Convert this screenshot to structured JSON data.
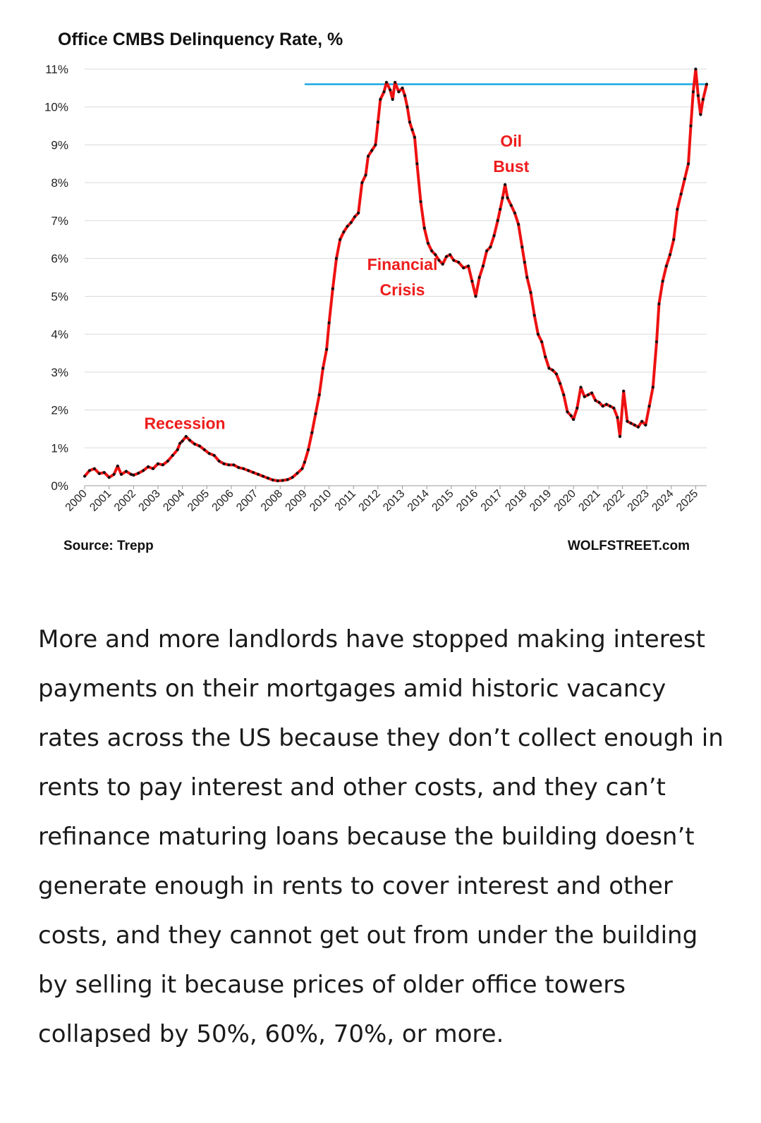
{
  "chart_data": {
    "type": "line",
    "title": "Office CMBS Delinquency Rate, %",
    "xlabel": "",
    "ylabel": "",
    "y_ticks": [
      "0%",
      "1%",
      "2%",
      "3%",
      "4%",
      "5%",
      "6%",
      "7%",
      "8%",
      "9%",
      "10%",
      "11%"
    ],
    "x_ticks": [
      "2000",
      "2001",
      "2002",
      "2003",
      "2004",
      "2005",
      "2006",
      "2007",
      "2008",
      "2009",
      "2010",
      "2011",
      "2012",
      "2013",
      "2014",
      "2015",
      "2016",
      "2017",
      "2018",
      "2019",
      "2020",
      "2021",
      "2022",
      "2023",
      "2024",
      "2025"
    ],
    "ylim": [
      0,
      11
    ],
    "xlim": [
      2000.0,
      2025.45
    ],
    "grid": "horizontal",
    "series": [
      {
        "color": "#ee1111",
        "marker_color": "#111111",
        "points": [
          [
            2000.0,
            0.25
          ],
          [
            2000.2,
            0.4
          ],
          [
            2000.4,
            0.45
          ],
          [
            2000.6,
            0.32
          ],
          [
            2000.8,
            0.35
          ],
          [
            2001.0,
            0.22
          ],
          [
            2001.2,
            0.3
          ],
          [
            2001.35,
            0.52
          ],
          [
            2001.5,
            0.3
          ],
          [
            2001.7,
            0.38
          ],
          [
            2001.9,
            0.3
          ],
          [
            2002.0,
            0.28
          ],
          [
            2002.2,
            0.33
          ],
          [
            2002.4,
            0.4
          ],
          [
            2002.6,
            0.5
          ],
          [
            2002.8,
            0.45
          ],
          [
            2003.0,
            0.58
          ],
          [
            2003.2,
            0.55
          ],
          [
            2003.4,
            0.65
          ],
          [
            2003.6,
            0.8
          ],
          [
            2003.8,
            0.95
          ],
          [
            2003.9,
            1.12
          ],
          [
            2004.0,
            1.18
          ],
          [
            2004.15,
            1.3
          ],
          [
            2004.3,
            1.2
          ],
          [
            2004.5,
            1.1
          ],
          [
            2004.7,
            1.05
          ],
          [
            2004.9,
            0.95
          ],
          [
            2005.1,
            0.85
          ],
          [
            2005.3,
            0.8
          ],
          [
            2005.5,
            0.65
          ],
          [
            2005.7,
            0.58
          ],
          [
            2005.9,
            0.55
          ],
          [
            2006.1,
            0.55
          ],
          [
            2006.3,
            0.48
          ],
          [
            2006.5,
            0.45
          ],
          [
            2006.7,
            0.4
          ],
          [
            2006.9,
            0.35
          ],
          [
            2007.1,
            0.3
          ],
          [
            2007.3,
            0.25
          ],
          [
            2007.5,
            0.2
          ],
          [
            2007.7,
            0.15
          ],
          [
            2007.9,
            0.13
          ],
          [
            2008.1,
            0.14
          ],
          [
            2008.3,
            0.16
          ],
          [
            2008.5,
            0.22
          ],
          [
            2008.7,
            0.33
          ],
          [
            2008.9,
            0.45
          ],
          [
            2009.0,
            0.62
          ],
          [
            2009.15,
            0.95
          ],
          [
            2009.3,
            1.4
          ],
          [
            2009.45,
            1.9
          ],
          [
            2009.6,
            2.4
          ],
          [
            2009.75,
            3.1
          ],
          [
            2009.9,
            3.6
          ],
          [
            2010.0,
            4.3
          ],
          [
            2010.15,
            5.2
          ],
          [
            2010.3,
            6.0
          ],
          [
            2010.45,
            6.5
          ],
          [
            2010.6,
            6.7
          ],
          [
            2010.75,
            6.85
          ],
          [
            2010.9,
            6.95
          ],
          [
            2011.05,
            7.1
          ],
          [
            2011.2,
            7.2
          ],
          [
            2011.35,
            8.0
          ],
          [
            2011.5,
            8.2
          ],
          [
            2011.6,
            8.7
          ],
          [
            2011.75,
            8.85
          ],
          [
            2011.9,
            9.0
          ],
          [
            2012.0,
            9.6
          ],
          [
            2012.1,
            10.2
          ],
          [
            2012.25,
            10.4
          ],
          [
            2012.35,
            10.65
          ],
          [
            2012.5,
            10.45
          ],
          [
            2012.6,
            10.2
          ],
          [
            2012.7,
            10.65
          ],
          [
            2012.85,
            10.4
          ],
          [
            2013.0,
            10.5
          ],
          [
            2013.1,
            10.3
          ],
          [
            2013.2,
            10.0
          ],
          [
            2013.3,
            9.6
          ],
          [
            2013.4,
            9.4
          ],
          [
            2013.5,
            9.2
          ],
          [
            2013.6,
            8.5
          ],
          [
            2013.75,
            7.5
          ],
          [
            2013.9,
            6.8
          ],
          [
            2014.05,
            6.4
          ],
          [
            2014.2,
            6.2
          ],
          [
            2014.35,
            6.1
          ],
          [
            2014.5,
            5.95
          ],
          [
            2014.65,
            5.85
          ],
          [
            2014.8,
            6.05
          ],
          [
            2014.95,
            6.1
          ],
          [
            2015.1,
            5.95
          ],
          [
            2015.3,
            5.9
          ],
          [
            2015.5,
            5.75
          ],
          [
            2015.7,
            5.8
          ],
          [
            2015.85,
            5.4
          ],
          [
            2016.0,
            5.0
          ],
          [
            2016.15,
            5.5
          ],
          [
            2016.3,
            5.8
          ],
          [
            2016.45,
            6.2
          ],
          [
            2016.6,
            6.3
          ],
          [
            2016.75,
            6.6
          ],
          [
            2016.9,
            7.0
          ],
          [
            2017.0,
            7.3
          ],
          [
            2017.1,
            7.6
          ],
          [
            2017.2,
            7.95
          ],
          [
            2017.3,
            7.6
          ],
          [
            2017.45,
            7.4
          ],
          [
            2017.6,
            7.2
          ],
          [
            2017.75,
            6.9
          ],
          [
            2017.9,
            6.3
          ],
          [
            2018.0,
            5.9
          ],
          [
            2018.1,
            5.5
          ],
          [
            2018.25,
            5.1
          ],
          [
            2018.4,
            4.5
          ],
          [
            2018.55,
            4.0
          ],
          [
            2018.7,
            3.8
          ],
          [
            2018.85,
            3.4
          ],
          [
            2019.0,
            3.1
          ],
          [
            2019.15,
            3.05
          ],
          [
            2019.3,
            2.95
          ],
          [
            2019.45,
            2.7
          ],
          [
            2019.6,
            2.4
          ],
          [
            2019.75,
            1.95
          ],
          [
            2019.9,
            1.85
          ],
          [
            2020.0,
            1.75
          ],
          [
            2020.15,
            2.05
          ],
          [
            2020.3,
            2.6
          ],
          [
            2020.45,
            2.35
          ],
          [
            2020.6,
            2.4
          ],
          [
            2020.75,
            2.45
          ],
          [
            2020.9,
            2.25
          ],
          [
            2021.05,
            2.2
          ],
          [
            2021.2,
            2.1
          ],
          [
            2021.35,
            2.15
          ],
          [
            2021.5,
            2.1
          ],
          [
            2021.65,
            2.05
          ],
          [
            2021.8,
            1.8
          ],
          [
            2021.9,
            1.3
          ],
          [
            2022.05,
            2.5
          ],
          [
            2022.2,
            1.7
          ],
          [
            2022.35,
            1.65
          ],
          [
            2022.5,
            1.6
          ],
          [
            2022.65,
            1.55
          ],
          [
            2022.8,
            1.7
          ],
          [
            2022.95,
            1.6
          ],
          [
            2023.1,
            2.1
          ],
          [
            2023.25,
            2.6
          ],
          [
            2023.4,
            3.8
          ],
          [
            2023.5,
            4.8
          ],
          [
            2023.65,
            5.4
          ],
          [
            2023.8,
            5.8
          ],
          [
            2023.95,
            6.1
          ],
          [
            2024.1,
            6.5
          ],
          [
            2024.25,
            7.3
          ],
          [
            2024.4,
            7.7
          ],
          [
            2024.55,
            8.1
          ],
          [
            2024.7,
            8.5
          ],
          [
            2024.8,
            9.5
          ],
          [
            2024.9,
            10.4
          ],
          [
            2025.0,
            11.0
          ],
          [
            2025.1,
            10.3
          ],
          [
            2025.2,
            9.8
          ],
          [
            2025.3,
            10.2
          ],
          [
            2025.45,
            10.6
          ]
        ]
      }
    ],
    "reference_line": {
      "y": 10.6,
      "x_start": 2009.0,
      "x_end": 2025.45,
      "color": "#1aa7e0"
    },
    "annotations": [
      {
        "lines": [
          "Recession"
        ],
        "x": 2004.1,
        "y": 1.5
      },
      {
        "lines": [
          "Financial",
          "Crisis"
        ],
        "x": 2013.0,
        "y": 5.7
      },
      {
        "lines": [
          "Oil",
          "Bust"
        ],
        "x": 2017.45,
        "y": 8.95
      }
    ],
    "source": "Source: Trepp",
    "credit": "WOLFSTREET.com"
  },
  "article": {
    "text": "More and more landlords have stopped making interest payments on their mortgages amid historic vacancy rates across the US because they don’t collect enough in rents to pay interest and other costs, and they can’t refinance maturing loans because the building doesn’t generate enough in rents to cover interest and other costs, and they cannot get out from under the building by selling it because prices of older office towers collapsed by 50%, 60%, 70%, or more."
  }
}
